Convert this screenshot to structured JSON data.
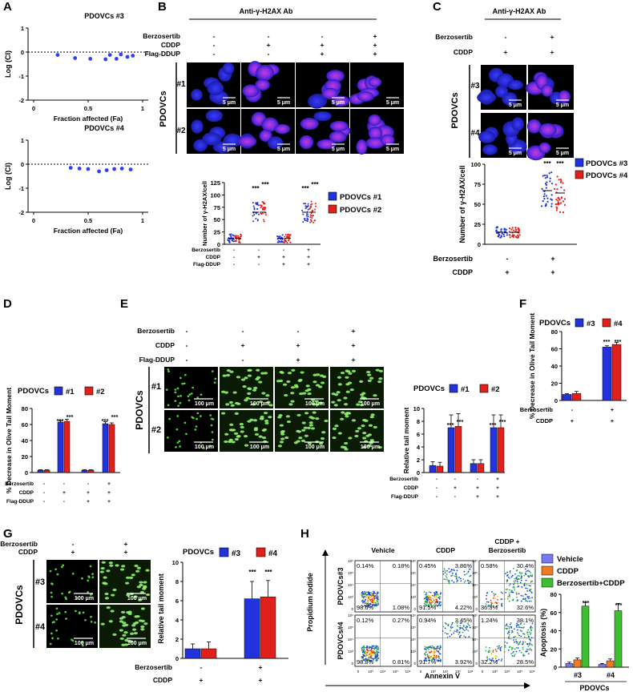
{
  "panels": {
    "A": {
      "letter": "A",
      "plots": [
        {
          "title": "PDOVCs #3",
          "ylabel": "Log (CI)",
          "xlabel": "Fraction affected (Fa)",
          "yticks": [
            "1",
            "0",
            "-1",
            "-2"
          ],
          "xticks": [
            "0",
            "0.5",
            "1"
          ],
          "points": [
            [
              0.22,
              -0.12
            ],
            [
              0.38,
              -0.25
            ],
            [
              0.52,
              -0.28
            ],
            [
              0.66,
              -0.3
            ],
            [
              0.7,
              -0.12
            ],
            [
              0.76,
              -0.28
            ],
            [
              0.8,
              -0.1
            ],
            [
              0.86,
              -0.2
            ],
            [
              0.91,
              -0.15
            ]
          ]
        },
        {
          "title": "PDOVCs #4",
          "ylabel": "Log (CI)",
          "xlabel": "Fraction affected (Fa)",
          "yticks": [
            "1",
            "0",
            "-1",
            "-2"
          ],
          "xticks": [
            "0",
            "0.5",
            "1"
          ],
          "points": [
            [
              0.34,
              -0.15
            ],
            [
              0.42,
              -0.18
            ],
            [
              0.5,
              -0.2
            ],
            [
              0.6,
              -0.3
            ],
            [
              0.67,
              -0.25
            ],
            [
              0.74,
              -0.2
            ],
            [
              0.81,
              -0.18
            ],
            [
              0.89,
              -0.22
            ]
          ]
        }
      ]
    },
    "B": {
      "letter": "B",
      "header": "Anti-γ-H2AX Ab",
      "row_labels": [
        "Berzosertib",
        "CDDP",
        "Flag-DDUP"
      ],
      "conditions": [
        [
          "-",
          "-",
          "-"
        ],
        [
          "-",
          "+",
          "-"
        ],
        [
          "-",
          "+",
          "+"
        ],
        [
          "+",
          "+",
          "+"
        ]
      ],
      "group_label": "PDOVCs",
      "image_rows": [
        "#1",
        "#2"
      ],
      "scale": "5 μm",
      "chart_ylabel": "Number of γ-H2AX/cell",
      "chart_yticks": [
        "0",
        "25",
        "50",
        "75",
        "100",
        "125"
      ],
      "chart_rows": [
        "Berzosertib",
        "CDDP",
        "Flag-DDUP"
      ],
      "chart_cond": [
        [
          "-",
          "-",
          "-"
        ],
        [
          "-",
          "+",
          "-"
        ],
        [
          "-",
          "+",
          "+"
        ],
        [
          "+",
          "+",
          "+"
        ]
      ],
      "legend": [
        "PDOVCs #1",
        "PDOVCs #2"
      ],
      "sig": [
        "***",
        "***",
        "***",
        "***"
      ]
    },
    "C": {
      "letter": "C",
      "header": "Anti-γ-H2AX Ab",
      "row_labels": [
        "Berzosertib",
        "CDDP"
      ],
      "conditions": [
        [
          "-",
          "+"
        ],
        [
          "+",
          "+"
        ]
      ],
      "group_label": "PDOVCs",
      "image_rows": [
        "#3",
        "#4"
      ],
      "scale": "5 μm",
      "chart_ylabel": "Number of γ-H2AX/cell",
      "chart_yticks": [
        "0",
        "25",
        "50",
        "75",
        "100"
      ],
      "legend": [
        "PDOVCs #3",
        "PDOVCs #4"
      ],
      "sig": [
        "***",
        "***"
      ]
    },
    "D": {
      "letter": "D",
      "legend_title": "PDOVCs",
      "legend": [
        "#1",
        "#2"
      ],
      "ylabel": "% Decrease in Olive Tail Moment",
      "yticks": [
        "0",
        "20",
        "40",
        "60",
        "80"
      ],
      "rows": [
        "Berzosertib",
        "CDDP",
        "Flag-DDUP"
      ],
      "cond": [
        [
          "-",
          "-",
          "-"
        ],
        [
          "-",
          "+",
          "-"
        ],
        [
          "-",
          "+",
          "+"
        ],
        [
          "+",
          "+",
          "+"
        ]
      ],
      "sig": [
        "***",
        "***",
        "***",
        "***"
      ]
    },
    "E": {
      "letter": "E",
      "row_labels": [
        "Berzosertib",
        "CDDP",
        "Flag-DDUP"
      ],
      "conditions": [
        [
          "-",
          "-",
          "-"
        ],
        [
          "-",
          "+",
          "-"
        ],
        [
          "-",
          "+",
          "+"
        ],
        [
          "+",
          "+",
          "+"
        ]
      ],
      "group_label": "PDOVCs",
      "image_rows": [
        "#1",
        "#2"
      ],
      "scale": "100 μm",
      "legend_title": "PDOVCs",
      "legend": [
        "#1",
        "#2"
      ],
      "ylabel": "Relative tail moment",
      "yticks": [
        "0",
        "2",
        "4",
        "6",
        "8",
        "10"
      ],
      "rows": [
        "Berzosertib",
        "CDDP",
        "Flag-DDUP"
      ],
      "cond": [
        [
          "-",
          "-",
          "-"
        ],
        [
          "-",
          "+",
          "-"
        ],
        [
          "-",
          "+",
          "+"
        ],
        [
          "+",
          "+",
          "+"
        ]
      ],
      "sig": [
        "***",
        "***",
        "***",
        "***"
      ]
    },
    "F": {
      "letter": "F",
      "legend_title": "PDOVCs",
      "legend": [
        "#3",
        "#4"
      ],
      "ylabel": "% Decrease in Olive Tail Moment",
      "yticks": [
        "0",
        "20",
        "40",
        "60",
        "80"
      ],
      "rows": [
        "Berzosertib",
        "CDDP"
      ],
      "cond": [
        [
          "-",
          "+"
        ],
        [
          "+",
          "+"
        ]
      ],
      "sig": [
        "***",
        "***"
      ]
    },
    "G": {
      "letter": "G",
      "row_labels": [
        "Berzosertib",
        "CDDP"
      ],
      "conditions": [
        [
          "-",
          "+"
        ],
        [
          "+",
          "+"
        ]
      ],
      "group_label": "PDOVCs",
      "image_rows": [
        "#3",
        "#4"
      ],
      "scale": "100 μm",
      "legend_title": "PDOVCs",
      "legend": [
        "#3",
        "#4"
      ],
      "ylabel": "Relative tail moment",
      "yticks": [
        "0",
        "2",
        "4",
        "6",
        "8",
        "10"
      ],
      "rows": [
        "Berzosertib",
        "CDDP"
      ],
      "cond": [
        [
          "-",
          "+"
        ],
        [
          "+",
          "+"
        ]
      ],
      "sig": [
        "***",
        "***"
      ]
    },
    "H": {
      "letter": "H",
      "col_titles": [
        "Vehicle",
        "CDDP",
        "CDDP +\nBerzosertib"
      ],
      "row_labels": [
        "PDOVCs#3",
        "PDOVCs#4"
      ],
      "ylabel": "Propidium Iodide",
      "xlabel": "Annexin V",
      "axis_ticks": [
        "0",
        "10³",
        "10⁴",
        "10⁵",
        "10⁶"
      ],
      "quadrants": [
        [
          [
            "0.14%",
            "0.18%",
            "98.6%",
            "1.08%"
          ],
          [
            "0.45%",
            "3.86%",
            "91.5%",
            "4.22%"
          ],
          [
            "0.58%",
            "30.4%",
            "36.3%",
            "32.6%"
          ]
        ],
        [
          [
            "0.12%",
            "0.27%",
            "98.8%",
            "0.81%"
          ],
          [
            "0.94%",
            "3.45%",
            "91.7%",
            "3.92%"
          ],
          [
            "1.24%",
            "38.1%",
            "32.2%",
            "28.5%"
          ]
        ]
      ],
      "legend": [
        "Vehicle",
        "CDDP",
        "Berzosertib+CDDP"
      ],
      "bar_ylabel": "Apoptosis (%)",
      "bar_yticks": [
        "0",
        "20",
        "40",
        "60",
        "80"
      ],
      "groups": [
        "#3",
        "#4"
      ],
      "group_caption": "PDOVCs",
      "sig": [
        "***",
        "***"
      ]
    }
  },
  "chart_data": [
    {
      "type": "scatter",
      "title": "PDOVCs #3",
      "xlabel": "Fraction affected (Fa)",
      "ylabel": "Log (CI)",
      "xlim": [
        0,
        1
      ],
      "ylim": [
        -2,
        1
      ],
      "x": [
        0.22,
        0.38,
        0.52,
        0.66,
        0.7,
        0.76,
        0.8,
        0.86,
        0.91
      ],
      "y": [
        -0.12,
        -0.25,
        -0.28,
        -0.3,
        -0.12,
        -0.28,
        -0.1,
        -0.2,
        -0.15
      ]
    },
    {
      "type": "scatter",
      "title": "PDOVCs #4",
      "xlabel": "Fraction affected (Fa)",
      "ylabel": "Log (CI)",
      "xlim": [
        0,
        1
      ],
      "ylim": [
        -2,
        1
      ],
      "x": [
        0.34,
        0.42,
        0.5,
        0.6,
        0.67,
        0.74,
        0.81,
        0.89
      ],
      "y": [
        -0.15,
        -0.18,
        -0.2,
        -0.3,
        -0.25,
        -0.2,
        -0.18,
        -0.22
      ]
    },
    {
      "type": "scatter",
      "ylabel": "Number of γ-H2AX/cell",
      "ylim": [
        0,
        125
      ],
      "categories": [
        "1",
        "2",
        "3",
        "4"
      ],
      "series": [
        {
          "name": "PDOVCs #1",
          "means": [
            12,
            65,
            12,
            65
          ],
          "sd": [
            8,
            18,
            8,
            18
          ]
        },
        {
          "name": "PDOVCs #2",
          "means": [
            12,
            65,
            12,
            65
          ],
          "sd": [
            8,
            20,
            8,
            20
          ]
        }
      ]
    },
    {
      "type": "scatter",
      "ylabel": "Number of γ-H2AX/cell",
      "ylim": [
        0,
        100
      ],
      "categories": [
        "1",
        "2"
      ],
      "series": [
        {
          "name": "PDOVCs #3",
          "means": [
            15,
            67
          ],
          "sd": [
            6,
            20
          ]
        },
        {
          "name": "PDOVCs #4",
          "means": [
            15,
            64
          ],
          "sd": [
            6,
            21
          ]
        }
      ]
    },
    {
      "type": "bar",
      "ylabel": "% Decrease in Olive Tail Moment",
      "ylim": [
        0,
        80
      ],
      "categories": [
        "1",
        "2",
        "3",
        "4"
      ],
      "series": [
        {
          "name": "#1",
          "values": [
            3,
            63,
            3,
            61
          ],
          "err": [
            0.5,
            1.5,
            0.5,
            2.5
          ]
        },
        {
          "name": "#2",
          "values": [
            3,
            64,
            3,
            60
          ],
          "err": [
            0.5,
            2.5,
            0.5,
            2.0
          ]
        }
      ]
    },
    {
      "type": "bar",
      "ylabel": "Relative tail moment",
      "ylim": [
        0,
        10
      ],
      "categories": [
        "1",
        "2",
        "3",
        "4"
      ],
      "series": [
        {
          "name": "#1",
          "values": [
            1.1,
            7.0,
            1.4,
            7.0
          ],
          "err": [
            0.6,
            2.0,
            0.6,
            2.0
          ]
        },
        {
          "name": "#2",
          "values": [
            1.0,
            7.2,
            1.4,
            7.0
          ],
          "err": [
            0.6,
            2.0,
            0.6,
            2.0
          ]
        }
      ]
    },
    {
      "type": "bar",
      "ylabel": "% Decrease in Olive Tail Moment",
      "ylim": [
        0,
        80
      ],
      "categories": [
        "1",
        "2"
      ],
      "series": [
        {
          "name": "#3",
          "values": [
            7,
            62
          ],
          "err": [
            0.8,
            1.5
          ]
        },
        {
          "name": "#4",
          "values": [
            8,
            65
          ],
          "err": [
            2.5,
            2.5
          ]
        }
      ]
    },
    {
      "type": "bar",
      "ylabel": "Relative tail moment",
      "ylim": [
        0,
        10
      ],
      "categories": [
        "1",
        "2"
      ],
      "series": [
        {
          "name": "#3",
          "values": [
            1.0,
            6.2
          ],
          "err": [
            0.5,
            1.8
          ]
        },
        {
          "name": "#4",
          "values": [
            1.0,
            6.4
          ],
          "err": [
            0.7,
            1.7
          ]
        }
      ]
    },
    {
      "type": "bar",
      "ylabel": "Apoptosis (%)",
      "ylim": [
        0,
        80
      ],
      "categories": [
        "#3",
        "#4"
      ],
      "series": [
        {
          "name": "Vehicle",
          "values": [
            4,
            3
          ],
          "err": [
            1.5,
            1
          ]
        },
        {
          "name": "CDDP",
          "values": [
            8,
            7
          ],
          "err": [
            2,
            2
          ]
        },
        {
          "name": "Berzosertib+CDDP",
          "values": [
            67,
            62
          ],
          "err": [
            4,
            8
          ]
        }
      ]
    }
  ],
  "colors": {
    "blue": "#2233dd",
    "red": "#e0201b",
    "orange": "#f07a23",
    "green": "#3cbf2e",
    "light_blue": "#7777ee",
    "nuclei": "#1c22c8",
    "comet": "#66ee44"
  }
}
